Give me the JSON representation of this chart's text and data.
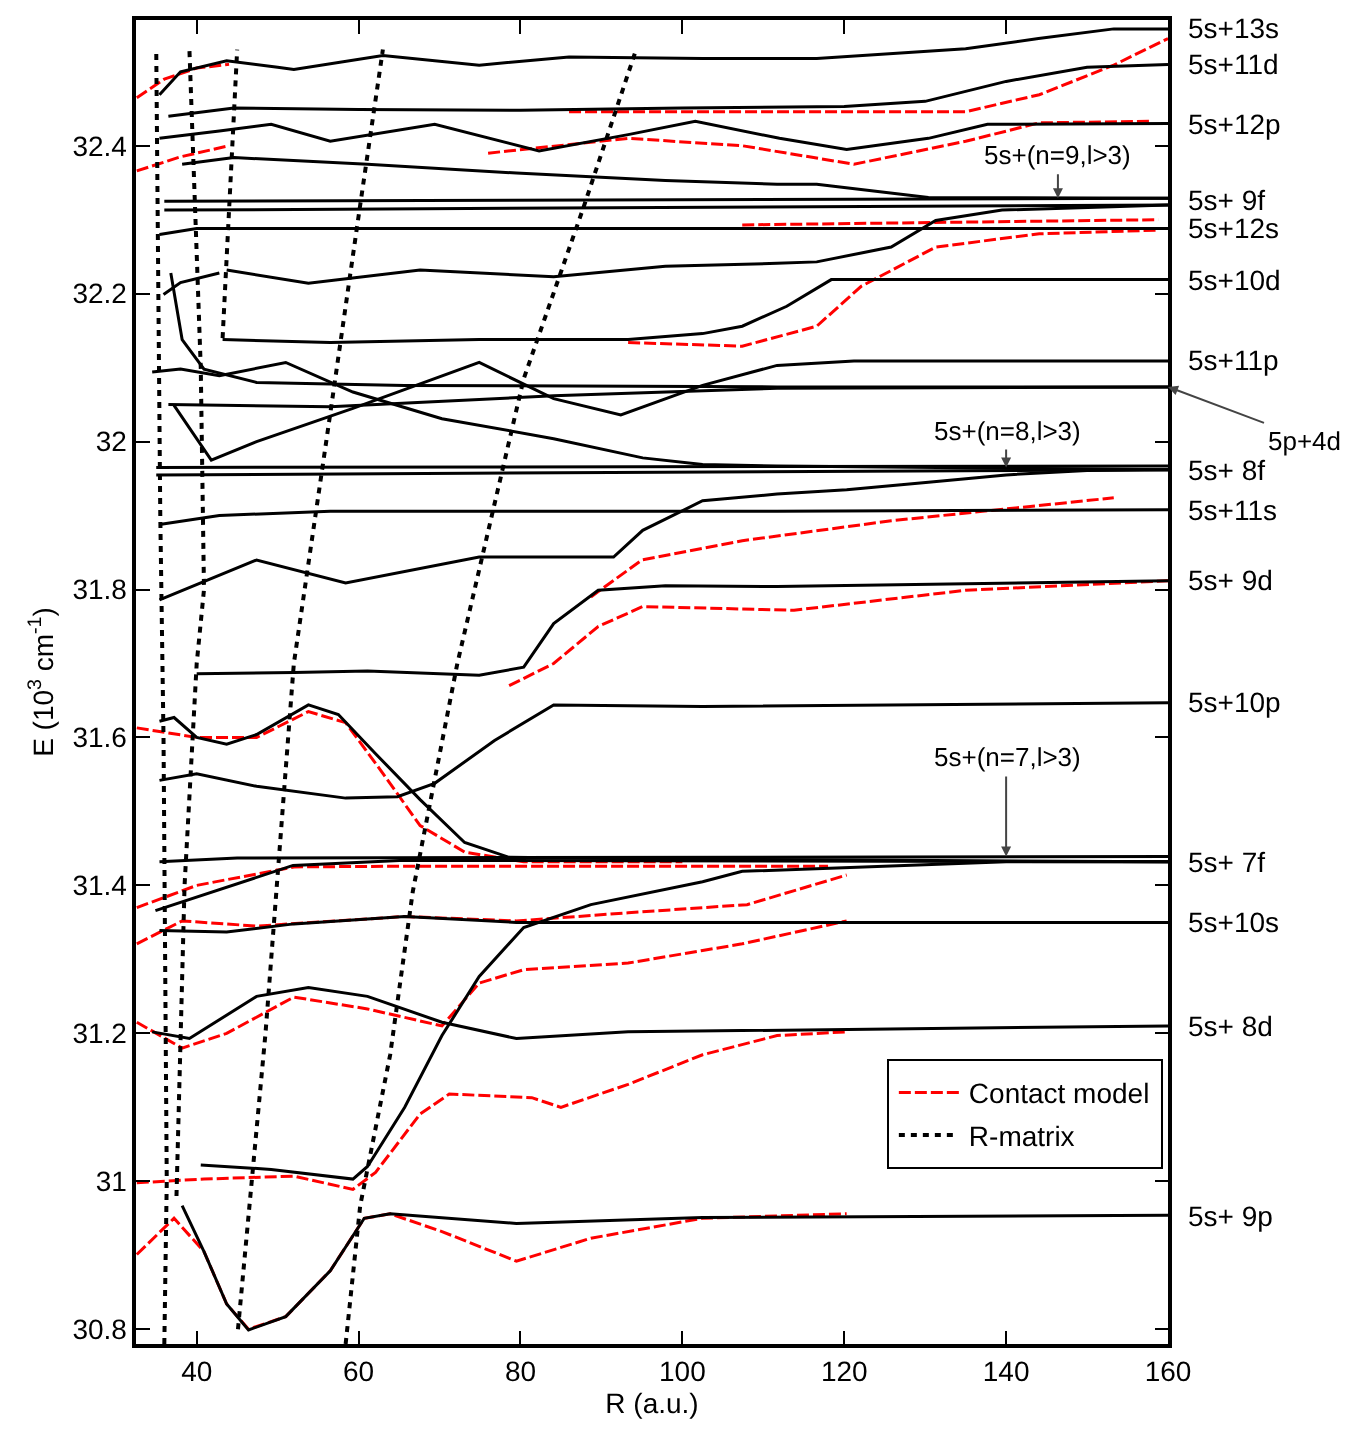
{
  "chart_data": {
    "type": "line",
    "xlabel": "R (a.u.)",
    "ylabel": "E (10$^{3}$ cm$^{-1}$)",
    "xlim": [
      32.5,
      160
    ],
    "ylim": [
      30.78,
      32.57
    ],
    "xticks": [
      40,
      60,
      80,
      100,
      120,
      140,
      160
    ],
    "yticks": [
      30.8,
      31,
      31.2,
      31.4,
      31.6,
      31.8,
      32,
      32.2,
      32.4
    ],
    "legend": "bottom right",
    "series": [
      {
        "name": "Contact model",
        "color": "#ff0000",
        "line_style": "dashed",
        "x": [
          32.6,
          37.2,
          40.9,
          43.7,
          46.4,
          51,
          56.5,
          60.7,
          63.9,
          70.3,
          79.5,
          88.7,
          102.5,
          120.3
        ],
        "values": [
          30.901,
          30.95,
          30.905,
          30.834,
          30.8,
          30.817,
          30.879,
          30.95,
          30.956,
          30.932,
          30.892,
          30.923,
          30.95,
          30.956
        ]
      },
      {
        "name": "R-matrix",
        "color": "#000000",
        "line_style": "dotted",
        "x": [
          45.1,
          48.5,
          52,
          56,
          60.2,
          63
        ],
        "values": [
          30.8,
          31.2,
          31.7,
          32.0,
          32.32,
          32.53
        ]
      },
      {
        "color": "#ff0000",
        "line_style": "dashed",
        "x": [
          32.6,
          40.9,
          52,
          59.3,
          62.1,
          67.6,
          71.2,
          81.4,
          85,
          93.3,
          102.5,
          111.7,
          120.3
        ],
        "values": [
          30.998,
          31.003,
          31.007,
          30.989,
          31.012,
          31.091,
          31.118,
          31.113,
          31.1,
          31.131,
          31.171,
          31.197,
          31.202
        ]
      },
      {
        "color": "#ff0000",
        "line_style": "dashed",
        "x": [
          32.6,
          38.2,
          43.7,
          52,
          61.1,
          70.3,
          74.9,
          80.4,
          93.3,
          102.5,
          107.4,
          120.3
        ],
        "values": [
          31.215,
          31.18,
          31.2,
          31.249,
          31.233,
          31.21,
          31.268,
          31.286,
          31.295,
          31.312,
          31.321,
          31.352
        ]
      },
      {
        "color": "#ff0000",
        "line_style": "dashed",
        "x": [
          32.6,
          38.2,
          47.4,
          65.7,
          79.5,
          93.3,
          108,
          120.3
        ],
        "values": [
          31.321,
          31.352,
          31.345,
          31.358,
          31.352,
          31.363,
          31.374,
          31.414
        ]
      },
      {
        "color": "#ff0000",
        "line_style": "dashed",
        "x": [
          32.6,
          40,
          52,
          65.7,
          84.1,
          118
        ],
        "values": [
          31.37,
          31.4,
          31.425,
          31.426,
          31.426,
          31.426
        ]
      },
      {
        "color": "#ff0000",
        "line_style": "dashed",
        "x": [
          32.6,
          40,
          47.4,
          53.8,
          58.4,
          62.1,
          67.6,
          73.1,
          80.4,
          100
        ],
        "values": [
          31.613,
          31.6,
          31.6,
          31.635,
          31.62,
          31.565,
          31.481,
          31.445,
          31.432,
          31.432
        ]
      },
      {
        "color": "#ff0000",
        "line_style": "dashed",
        "x": [
          78.6,
          84.1,
          89.6,
          95.1,
          113.8,
          135,
          160
        ],
        "values": [
          31.67,
          31.7,
          31.75,
          31.777,
          31.772,
          31.799,
          31.812
        ]
      },
      {
        "color": "#ff0000",
        "line_style": "dashed",
        "x": [
          88.7,
          95,
          107.4,
          125.8,
          153.3
        ],
        "values": [
          31.79,
          31.84,
          31.866,
          31.893,
          31.924
        ]
      },
      {
        "color": "#ff0000",
        "line_style": "dashed",
        "x": [
          93.3,
          107.4,
          116.6,
          122.1,
          131.3,
          144.1,
          158.8
        ],
        "values": [
          32.134,
          32.129,
          32.156,
          32.21,
          32.263,
          32.281,
          32.286
        ]
      },
      {
        "color": "#ff0000",
        "line_style": "dashed",
        "x": [
          76,
          93.3,
          107.4,
          121.2,
          135,
          144.1,
          157.9
        ],
        "values": [
          32.39,
          32.41,
          32.4,
          32.375,
          32.406,
          32.431,
          32.433
        ]
      },
      {
        "color": "#ff0000",
        "line_style": "dashed",
        "x": [
          86,
          107.4,
          135,
          144.1,
          153.3,
          160
        ],
        "values": [
          32.446,
          32.446,
          32.446,
          32.469,
          32.509,
          32.545
        ]
      },
      {
        "color": "#ff0000",
        "line_style": "dashed",
        "x": [
          107.4,
          158.8
        ],
        "values": [
          32.293,
          32.3
        ]
      },
      {
        "color": "#ff0000",
        "line_style": "dashed",
        "x": [
          32.6,
          36,
          40,
          44
        ],
        "values": [
          32.465,
          32.49,
          32.505,
          32.51
        ]
      },
      {
        "color": "#ff0000",
        "line_style": "dashed",
        "x": [
          32.6,
          38,
          44
        ],
        "values": [
          32.366,
          32.385,
          32.4
        ]
      },
      {
        "color": "#000000",
        "line_style": "solid",
        "x": [
          35.4,
          38,
          43.7,
          50,
          52,
          63,
          74.9,
          86,
          102.5,
          116.6,
          135,
          144,
          153.3,
          160
        ],
        "values": [
          32.469,
          32.5,
          32.515,
          32.506,
          32.503,
          32.522,
          32.509,
          32.52,
          32.518,
          32.518,
          32.531,
          32.545,
          32.558,
          32.558
        ]
      },
      {
        "color": "#000000",
        "line_style": "solid",
        "x": [
          36.5,
          44.6,
          60,
          80,
          100,
          120,
          130,
          140,
          150,
          160
        ],
        "values": [
          32.44,
          32.451,
          32.449,
          32.448,
          32.451,
          32.453,
          32.46,
          32.487,
          32.506,
          32.51
        ]
      },
      {
        "color": "#000000",
        "line_style": "solid",
        "x": [
          35.4,
          42.8,
          49.2,
          56.5,
          69.4,
          82.3,
          93.3,
          101.6,
          112,
          120.3,
          130.4,
          137.7,
          160
        ],
        "values": [
          32.41,
          32.42,
          32.429,
          32.406,
          32.429,
          32.393,
          32.415,
          32.433,
          32.41,
          32.395,
          32.41,
          32.429,
          32.43
        ]
      },
      {
        "color": "#000000",
        "line_style": "solid",
        "x": [
          38.2,
          44.6,
          61.1,
          79.5,
          97.9,
          111.7,
          116.6,
          130.4,
          160
        ],
        "values": [
          32.375,
          32.384,
          32.375,
          32.363,
          32.353,
          32.348,
          32.348,
          32.33,
          32.329
        ]
      },
      {
        "color": "#000000",
        "line_style": "solid",
        "x": [
          36,
          160
        ],
        "values": [
          32.325,
          32.329
        ]
      },
      {
        "color": "#000000",
        "line_style": "solid",
        "x": [
          36,
          160
        ],
        "values": [
          32.313,
          32.32
        ]
      },
      {
        "color": "#000000",
        "line_style": "solid",
        "x": [
          35.4,
          40,
          160
        ],
        "values": [
          32.28,
          32.288,
          32.288
        ]
      },
      {
        "color": "#000000",
        "line_style": "solid",
        "x": [
          43.7,
          53.8,
          67.6,
          84.1,
          97.9,
          111.7,
          116.6,
          125.8,
          131.3,
          139.5,
          160
        ],
        "values": [
          32.232,
          32.214,
          32.232,
          32.223,
          32.237,
          32.241,
          32.243,
          32.263,
          32.299,
          32.313,
          32.32
        ]
      },
      {
        "color": "#000000",
        "line_style": "solid",
        "x": [
          35.9,
          38,
          42.8
        ],
        "values": [
          32.199,
          32.215,
          32.228
        ]
      },
      {
        "color": "#000000",
        "line_style": "solid",
        "x": [
          43.2,
          56.5,
          74.9,
          93.3,
          102.5,
          107.4,
          112.9,
          118.4,
          160
        ],
        "values": [
          32.138,
          32.134,
          32.138,
          32.138,
          32.146,
          32.156,
          32.183,
          32.219,
          32.219
        ]
      },
      {
        "color": "#000000",
        "line_style": "solid",
        "x": [
          36.8,
          38.2,
          40.9,
          47.4,
          65.7,
          111.7,
          160
        ],
        "values": [
          32.228,
          32.138,
          32.098,
          32.08,
          32.076,
          32.074,
          32.074
        ]
      },
      {
        "color": "#000000",
        "line_style": "solid",
        "x": [
          34.5,
          38,
          42.8,
          51,
          59.3,
          70.3,
          84.1,
          95.1,
          102.5,
          111.7,
          160
        ],
        "values": [
          32.094,
          32.098,
          32.089,
          32.107,
          32.067,
          32.031,
          32.004,
          31.978,
          31.969,
          31.967,
          31.962
        ]
      },
      {
        "color": "#000000",
        "line_style": "solid",
        "x": [
          37.2,
          41.8,
          47.4,
          59.3,
          74.9,
          84.1,
          92.4,
          102.5,
          111.7,
          121.2,
          160
        ],
        "values": [
          32.049,
          31.975,
          32.0,
          32.045,
          32.107,
          32.058,
          32.036,
          32.076,
          32.103,
          32.109,
          32.109
        ]
      },
      {
        "color": "#000000",
        "line_style": "solid",
        "x": [
          36.5,
          56.5,
          84.1,
          111.7,
          160
        ],
        "values": [
          32.05,
          32.047,
          32.062,
          32.072,
          32.074
        ]
      },
      {
        "color": "#000000",
        "line_style": "solid",
        "x": [
          35,
          160
        ],
        "values": [
          31.965,
          31.967
        ]
      },
      {
        "color": "#000000",
        "line_style": "solid",
        "x": [
          35,
          160
        ],
        "values": [
          31.955,
          31.962
        ]
      },
      {
        "color": "#000000",
        "line_style": "solid",
        "x": [
          35.4,
          42.8,
          56.5,
          111.7,
          160
        ],
        "values": [
          31.888,
          31.9,
          31.906,
          31.906,
          31.908
        ]
      },
      {
        "color": "#000000",
        "line_style": "solid",
        "x": [
          35.4,
          47.4,
          58.4,
          74.9,
          91.5,
          95.1,
          102.5,
          111.7,
          120.3,
          130.4,
          140,
          150,
          160
        ],
        "values": [
          31.786,
          31.84,
          31.809,
          31.844,
          31.844,
          31.88,
          31.92,
          31.929,
          31.935,
          31.945,
          31.955,
          31.961,
          31.962
        ]
      },
      {
        "color": "#000000",
        "line_style": "solid",
        "x": [
          40,
          52,
          61.1,
          74.9,
          80.4,
          84.1,
          89.6,
          97.9,
          111.7,
          160
        ],
        "values": [
          31.686,
          31.688,
          31.69,
          31.684,
          31.695,
          31.754,
          31.799,
          31.805,
          31.804,
          31.812
        ]
      },
      {
        "color": "#000000",
        "line_style": "solid",
        "x": [
          35.4,
          37.2,
          40,
          43.7,
          47.4,
          53.8,
          57.5,
          62.1,
          67.6,
          73.1,
          78.6,
          93.3,
          160
        ],
        "values": [
          31.622,
          31.627,
          31.6,
          31.591,
          31.604,
          31.644,
          31.631,
          31.578,
          31.516,
          31.458,
          31.438,
          31.436,
          31.432
        ]
      },
      {
        "color": "#000000",
        "line_style": "solid",
        "x": [
          35.4,
          40,
          47.4,
          58.4,
          64.8,
          69.4,
          76.8,
          84.1,
          102.5,
          160
        ],
        "values": [
          31.542,
          31.551,
          31.534,
          31.518,
          31.52,
          31.538,
          31.596,
          31.644,
          31.642,
          31.647
        ]
      },
      {
        "color": "#000000",
        "line_style": "solid",
        "x": [
          35.4,
          45,
          160
        ],
        "values": [
          31.432,
          31.437,
          31.439
        ]
      },
      {
        "color": "#000000",
        "line_style": "solid",
        "x": [
          34.9,
          51.9,
          65.7,
          160
        ],
        "values": [
          31.366,
          31.427,
          31.434,
          31.432
        ]
      },
      {
        "color": "#000000",
        "line_style": "solid",
        "x": [
          35.4,
          43.7,
          52,
          65.7,
          79.5,
          100,
          160
        ],
        "values": [
          31.339,
          31.337,
          31.348,
          31.358,
          31.35,
          31.35,
          31.35
        ]
      },
      {
        "color": "#000000",
        "line_style": "solid",
        "x": [
          40.5,
          49.2,
          59.3,
          61.1,
          65.7,
          70.3,
          74.9,
          80.4,
          88.7,
          102.5,
          107.4,
          140,
          160
        ],
        "values": [
          31.022,
          31.016,
          31.003,
          31.02,
          31.1,
          31.197,
          31.277,
          31.343,
          31.374,
          31.405,
          31.419,
          31.432,
          31.432
        ]
      },
      {
        "color": "#000000",
        "line_style": "solid",
        "x": [
          34.5,
          39.1,
          47.4,
          53.8,
          61.1,
          70.3,
          79.5,
          93.3,
          160
        ],
        "values": [
          31.202,
          31.193,
          31.25,
          31.262,
          31.25,
          31.215,
          31.193,
          31.202,
          31.21
        ]
      },
      {
        "color": "#000000",
        "line_style": "solid",
        "x": [
          38.2,
          40.9,
          43.7,
          46.4,
          51,
          56.5,
          60.7,
          63.9,
          79.5,
          102.5,
          160
        ],
        "values": [
          30.967,
          30.905,
          30.834,
          30.799,
          30.817,
          30.879,
          30.95,
          30.956,
          30.943,
          30.951,
          30.954
        ]
      },
      {
        "color": "#000000",
        "line_style": "dotted",
        "x": [
          36,
          36.3,
          35.9,
          35.5,
          35
        ],
        "values": [
          30.78,
          31.0,
          31.6,
          31.9,
          32.53
        ]
      },
      {
        "color": "#000000",
        "line_style": "dotted",
        "x": [
          37.5,
          38.5,
          40,
          40.9,
          40.5,
          39.1
        ],
        "values": [
          30.98,
          31.4,
          31.7,
          31.8,
          32.1,
          32.53
        ]
      },
      {
        "color": "#000000",
        "line_style": "dotted",
        "x": [
          43.2,
          45
        ],
        "values": [
          32.14,
          32.53
        ]
      },
      {
        "color": "#000000",
        "line_style": "dotted",
        "x": [
          58.4,
          60.2,
          63.9,
          66.7,
          72.2,
          80.4,
          87.8,
          94.2
        ],
        "values": [
          30.78,
          30.967,
          31.171,
          31.392,
          31.7,
          32.085,
          32.317,
          32.527
        ]
      }
    ],
    "annotations": [
      {
        "text": "5s+13s",
        "x": 160,
        "y": 32.558
      },
      {
        "text": "5s+11d",
        "x": 160,
        "y": 32.51
      },
      {
        "text": "5s+12p",
        "x": 160,
        "y": 32.43
      },
      {
        "text": "5s+(n=9,l>3)",
        "x": 146.4,
        "y": 32.329
      },
      {
        "text": "5s+ 9f",
        "x": 160,
        "y": 32.326
      },
      {
        "text": "5s+12s",
        "x": 160,
        "y": 32.288
      },
      {
        "text": "5s+10d",
        "x": 160,
        "y": 32.219
      },
      {
        "text": "5s+11p",
        "x": 160,
        "y": 32.109
      },
      {
        "text": "5p+4d",
        "x": 160,
        "y": 32.074
      },
      {
        "text": "5s+(n=8,l>3)",
        "x": 140,
        "y": 31.965
      },
      {
        "text": "5s+ 8f",
        "x": 160,
        "y": 31.962
      },
      {
        "text": "5s+11s",
        "x": 160,
        "y": 31.908
      },
      {
        "text": "5s+ 9d",
        "x": 160,
        "y": 31.812
      },
      {
        "text": "5s+10p",
        "x": 160,
        "y": 31.647
      },
      {
        "text": "5s+(n=7,l>3)",
        "x": 140,
        "y": 31.439
      },
      {
        "text": "5s+ 7f",
        "x": 160,
        "y": 31.432
      },
      {
        "text": "5s+10s",
        "x": 160,
        "y": 31.35
      },
      {
        "text": "5s+ 8d",
        "x": 160,
        "y": 31.21
      },
      {
        "text": "5s+ 9p",
        "x": 160,
        "y": 30.954
      }
    ]
  }
}
